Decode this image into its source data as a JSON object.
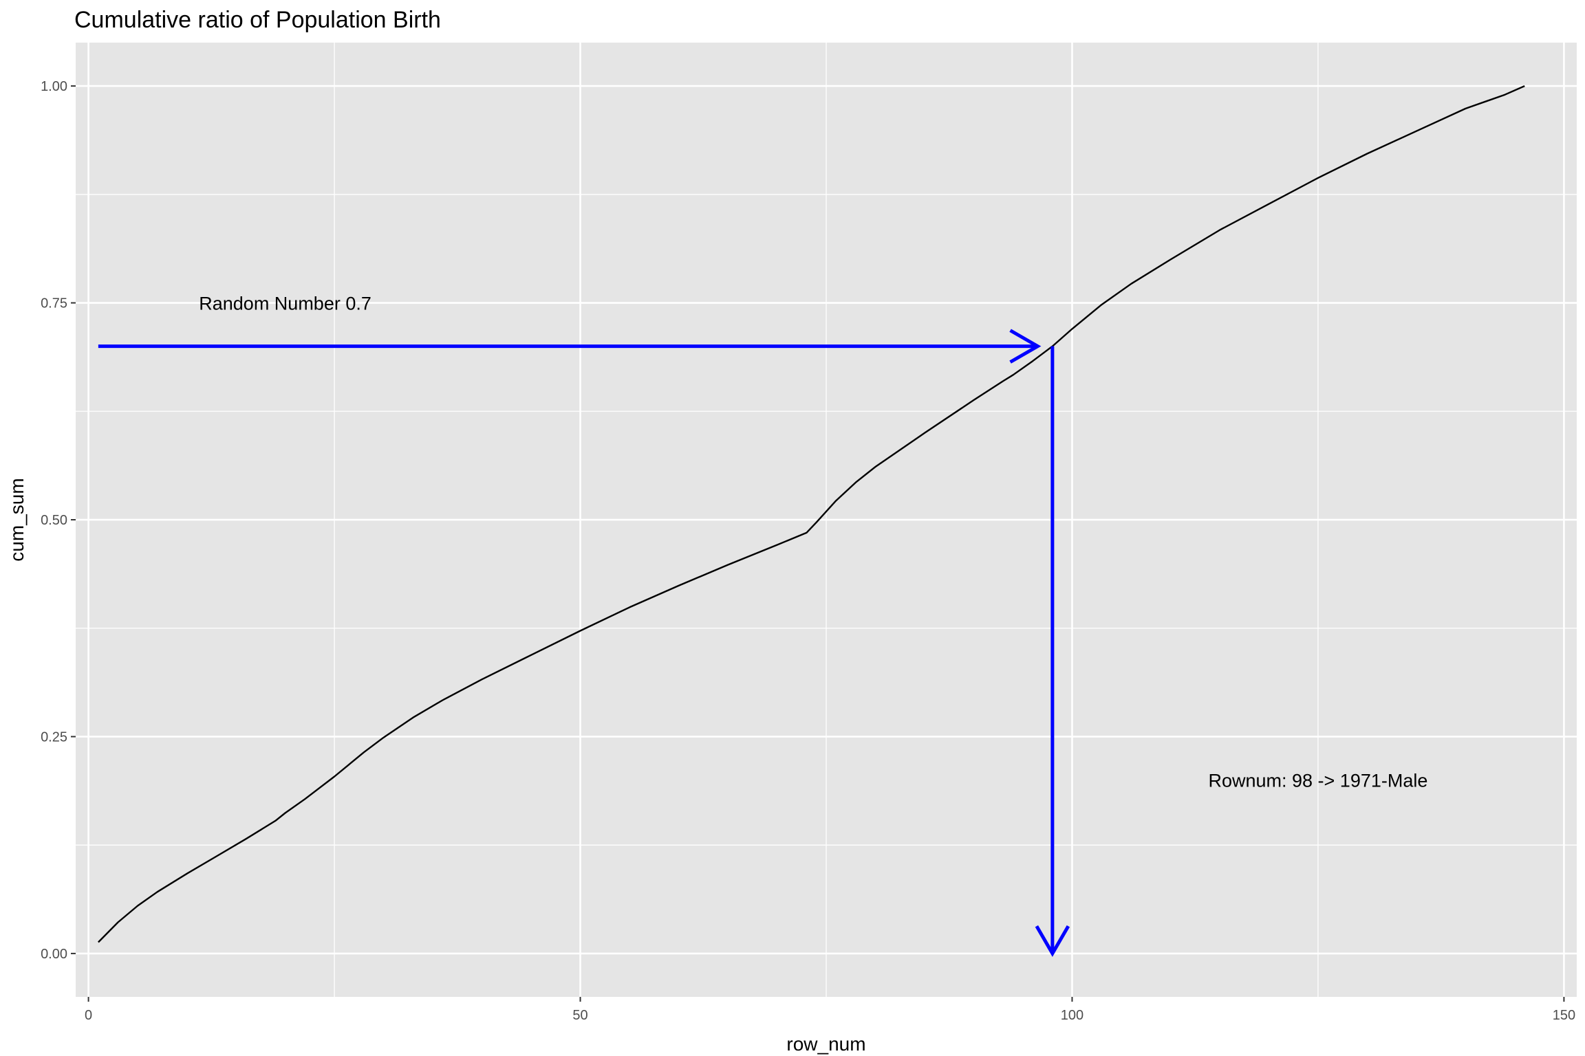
{
  "chart_data": {
    "type": "line",
    "title": "Cumulative ratio of Population Birth",
    "xlabel": "row_num",
    "ylabel": "cum_sum",
    "xlim": [
      -1.3,
      151.3
    ],
    "ylim": [
      -0.05,
      1.05
    ],
    "x_ticks": [
      0,
      50,
      100,
      150
    ],
    "x_tick_labels": [
      "0",
      "50",
      "100",
      "150"
    ],
    "x_minor_ticks": [
      25,
      75,
      125
    ],
    "y_ticks": [
      0,
      0.25,
      0.5,
      0.75,
      1.0
    ],
    "y_tick_labels": [
      "0.00",
      "0.25",
      "0.50",
      "0.75",
      "1.00"
    ],
    "y_minor_ticks": [
      0.125,
      0.375,
      0.625,
      0.875
    ],
    "grid": true,
    "colors": {
      "panel": "#e5e5e5",
      "grid": "#ffffff",
      "line": "#000000",
      "arrow": "#0000ff"
    },
    "series": [
      {
        "x": [
          1,
          3,
          5,
          7,
          10,
          13,
          16,
          19,
          20,
          22,
          25,
          28,
          30,
          33,
          36,
          40,
          45,
          50,
          55,
          60,
          65,
          70,
          73,
          74,
          76,
          78,
          80,
          85,
          90,
          93,
          94,
          96,
          98,
          100,
          103,
          106,
          110,
          115,
          120,
          125,
          130,
          135,
          140,
          144,
          146
        ],
        "y": [
          0.013,
          0.036,
          0.055,
          0.071,
          0.092,
          0.112,
          0.132,
          0.153,
          0.162,
          0.178,
          0.204,
          0.232,
          0.249,
          0.272,
          0.292,
          0.316,
          0.344,
          0.372,
          0.399,
          0.424,
          0.448,
          0.471,
          0.485,
          0.497,
          0.522,
          0.543,
          0.561,
          0.6,
          0.638,
          0.66,
          0.667,
          0.683,
          0.7,
          0.72,
          0.748,
          0.772,
          0.8,
          0.834,
          0.864,
          0.894,
          0.922,
          0.948,
          0.974,
          0.99,
          1.0
        ]
      }
    ],
    "arrows": [
      {
        "from": {
          "x": 1,
          "y": 0.7
        },
        "to": {
          "x": 96.5,
          "y": 0.7
        }
      },
      {
        "from": {
          "x": 98,
          "y": 0.7
        },
        "to": {
          "x": 98,
          "y": 0.0
        }
      }
    ],
    "annotations": [
      {
        "text": "Random Number 0.7",
        "x": 20,
        "y": 0.75
      },
      {
        "text": "Rownum: 98 -> 1971-Male",
        "x": 125,
        "y": 0.2
      }
    ]
  }
}
